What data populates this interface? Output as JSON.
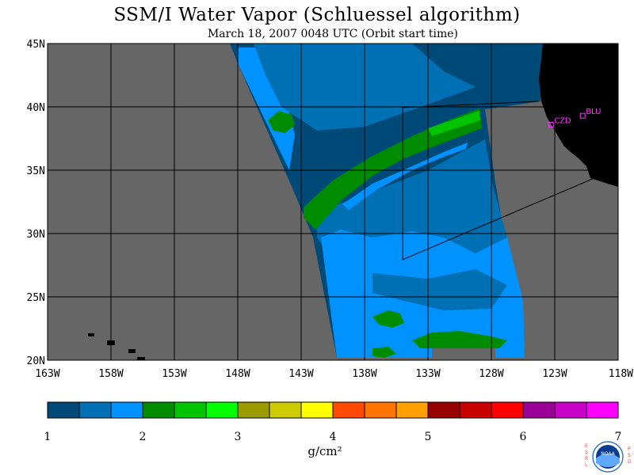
{
  "header": {
    "title": "SSM/I Water Vapor (Schluessel algorithm)",
    "subtitle": "March 18, 2007  0048 UTC  (Orbit start time)"
  },
  "map": {
    "lon_range": [
      -163,
      -118
    ],
    "lat_range": [
      20,
      45
    ],
    "lat_labels": [
      "45N",
      "40N",
      "35N",
      "30N",
      "25N",
      "20N"
    ],
    "lon_labels": [
      "163W",
      "158W",
      "153W",
      "148W",
      "143W",
      "138W",
      "133W",
      "128W",
      "123W",
      "118W"
    ],
    "stations": [
      {
        "name": "CZD",
        "lon": -123.3,
        "lat": 38.6
      },
      {
        "name": "BLU",
        "lon": -120.8,
        "lat": 39.3
      }
    ],
    "colors": {
      "background": "#666666",
      "land": "#000000",
      "station": "#ff33ff"
    }
  },
  "colorbar": {
    "colors": [
      "#004a78",
      "#0070b4",
      "#0093ff",
      "#008c00",
      "#00c400",
      "#00ff00",
      "#9b9b00",
      "#cccc00",
      "#ffff00",
      "#ff4a00",
      "#ff7300",
      "#ffa000",
      "#960000",
      "#c80000",
      "#ff0000",
      "#9b0096",
      "#c800c8",
      "#ff00ff"
    ],
    "labels": [
      "1",
      "2",
      "3",
      "4",
      "5",
      "6",
      "7"
    ],
    "unit": "g/cm²"
  },
  "logo": {
    "left_text": "ESRL",
    "right_text": "PSD",
    "center_text": "NOAA"
  }
}
